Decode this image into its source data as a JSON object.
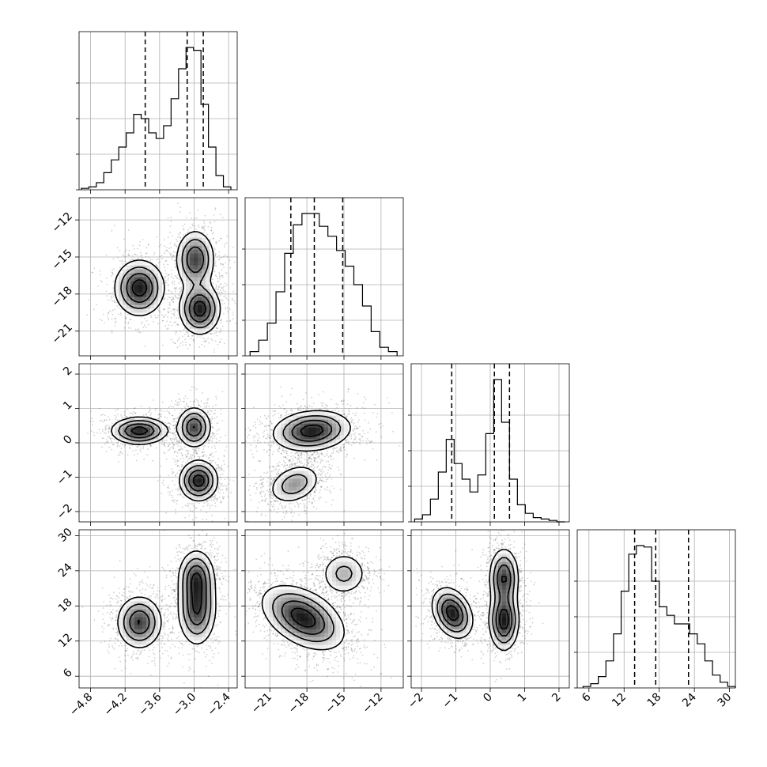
{
  "chart_data": {
    "type": "corner",
    "params": [
      {
        "range": [
          -5.0,
          -2.25
        ],
        "ticks": [
          "-4.8",
          "-4.2",
          "-3.6",
          "-3.0",
          "-2.4"
        ],
        "tick_values": [
          -4.8,
          -4.2,
          -3.6,
          -3.0,
          -2.4
        ],
        "quantiles": [
          -3.85,
          -3.12,
          -2.84
        ],
        "hist": {
          "edges": [
            -4.96,
            -4.83,
            -4.7,
            -4.57,
            -4.44,
            -4.31,
            -4.18,
            -4.05,
            -3.92,
            -3.79,
            -3.66,
            -3.53,
            -3.4,
            -3.27,
            -3.14,
            -3.01,
            -2.88,
            -2.75,
            -2.62,
            -2.49,
            -2.36
          ],
          "counts": [
            0.01,
            0.02,
            0.05,
            0.12,
            0.21,
            0.3,
            0.4,
            0.53,
            0.5,
            0.4,
            0.36,
            0.45,
            0.64,
            0.85,
            1.0,
            0.98,
            0.6,
            0.3,
            0.1,
            0.02
          ]
        }
      },
      {
        "range": [
          -23.0,
          -10.2
        ],
        "ticks": [
          "-21",
          "-18",
          "-15",
          "-12"
        ],
        "tick_values": [
          -21,
          -18,
          -15,
          -12
        ],
        "quantiles": [
          -19.3,
          -17.4,
          -15.1
        ],
        "hist": {
          "edges": [
            -22.6,
            -21.9,
            -21.2,
            -20.5,
            -19.8,
            -19.1,
            -18.4,
            -17.7,
            -17.0,
            -16.3,
            -15.6,
            -14.9,
            -14.2,
            -13.5,
            -12.8,
            -12.1,
            -11.4,
            -10.7
          ],
          "counts": [
            0.03,
            0.11,
            0.23,
            0.45,
            0.72,
            0.92,
            1.0,
            1.0,
            0.91,
            0.84,
            0.74,
            0.63,
            0.5,
            0.35,
            0.17,
            0.06,
            0.03
          ]
        }
      },
      {
        "range": [
          -2.3,
          2.3
        ],
        "ticks": [
          "-2",
          "-1",
          "0",
          "1",
          "2"
        ],
        "tick_values": [
          -2,
          -1,
          0,
          1,
          2
        ],
        "quantiles": [
          -1.12,
          0.12,
          0.56
        ],
        "hist": {
          "edges": [
            -2.2,
            -1.97,
            -1.74,
            -1.51,
            -1.28,
            -1.05,
            -0.82,
            -0.59,
            -0.36,
            -0.13,
            0.1,
            0.33,
            0.56,
            0.79,
            1.02,
            1.25,
            1.48,
            1.71,
            1.94,
            2.17
          ],
          "counts": [
            0.02,
            0.05,
            0.16,
            0.35,
            0.58,
            0.41,
            0.3,
            0.21,
            0.33,
            0.62,
            1.0,
            0.7,
            0.3,
            0.12,
            0.06,
            0.03,
            0.02,
            0.01,
            0.0
          ]
        }
      },
      {
        "range": [
          4.0,
          31.0
        ],
        "ticks": [
          "6",
          "12",
          "18",
          "24",
          "30"
        ],
        "tick_values": [
          6,
          12,
          18,
          24,
          30
        ],
        "quantiles": [
          13.8,
          17.4,
          23.0
        ],
        "hist": {
          "edges": [
            5.0,
            6.3,
            7.6,
            8.9,
            10.2,
            11.5,
            12.8,
            14.1,
            15.4,
            16.7,
            18.0,
            19.3,
            20.6,
            21.9,
            23.2,
            24.5,
            25.8,
            27.1,
            28.4,
            29.7,
            31.0
          ],
          "counts": [
            0.01,
            0.03,
            0.08,
            0.19,
            0.38,
            0.68,
            0.94,
            1.0,
            0.99,
            0.75,
            0.57,
            0.51,
            0.45,
            0.45,
            0.38,
            0.31,
            0.19,
            0.09,
            0.04,
            0.01
          ]
        }
      }
    ],
    "pairs": [
      {
        "x": 0,
        "y": 1,
        "modes": [
          {
            "cx": -3.95,
            "cy": -17.5,
            "sx": 0.22,
            "sy": 1.15,
            "rho": 0.0,
            "w": 0.35
          },
          {
            "cx": -2.98,
            "cy": -15.2,
            "sx": 0.17,
            "sy": 1.2,
            "rho": 0.0,
            "w": 0.3
          },
          {
            "cx": -2.9,
            "cy": -19.2,
            "sx": 0.18,
            "sy": 1.05,
            "rho": 0.0,
            "w": 0.35
          }
        ]
      },
      {
        "x": 0,
        "y": 2,
        "modes": [
          {
            "cx": -3.95,
            "cy": 0.35,
            "sx": 0.25,
            "sy": 0.2,
            "rho": 0.0,
            "w": 0.35
          },
          {
            "cx": -3.0,
            "cy": 0.45,
            "sx": 0.15,
            "sy": 0.3,
            "rho": 0.0,
            "w": 0.3
          },
          {
            "cx": -2.92,
            "cy": -1.1,
            "sx": 0.17,
            "sy": 0.3,
            "rho": 0.0,
            "w": 0.35
          }
        ]
      },
      {
        "x": 1,
        "y": 2,
        "modes": [
          {
            "cx": -17.6,
            "cy": 0.35,
            "sx": 1.6,
            "sy": 0.3,
            "rho": 0.15,
            "w": 0.65
          },
          {
            "cx": -19.0,
            "cy": -1.2,
            "sx": 1.1,
            "sy": 0.3,
            "rho": 0.3,
            "w": 0.35
          }
        ]
      },
      {
        "x": 0,
        "y": 3,
        "modes": [
          {
            "cx": -3.95,
            "cy": 15.2,
            "sx": 0.2,
            "sy": 2.3,
            "rho": 0.0,
            "w": 0.35
          },
          {
            "cx": -2.95,
            "cy": 17.5,
            "sx": 0.17,
            "sy": 3.2,
            "rho": 0.0,
            "w": 0.35
          },
          {
            "cx": -2.96,
            "cy": 23.0,
            "sx": 0.16,
            "sy": 2.4,
            "rho": 0.0,
            "w": 0.3
          }
        ]
      },
      {
        "x": 1,
        "y": 3,
        "modes": [
          {
            "cx": -18.3,
            "cy": 16.0,
            "sx": 1.7,
            "sy": 2.8,
            "rho": -0.45,
            "w": 0.7
          },
          {
            "cx": -15.0,
            "cy": 23.5,
            "sx": 1.0,
            "sy": 2.0,
            "rho": 0.0,
            "w": 0.3
          }
        ]
      },
      {
        "x": 2,
        "y": 3,
        "modes": [
          {
            "cx": -1.1,
            "cy": 16.8,
            "sx": 0.3,
            "sy": 2.2,
            "rho": -0.3,
            "w": 0.35
          },
          {
            "cx": 0.4,
            "cy": 15.5,
            "sx": 0.22,
            "sy": 2.6,
            "rho": 0.0,
            "w": 0.35
          },
          {
            "cx": 0.4,
            "cy": 22.8,
            "sx": 0.22,
            "sy": 2.6,
            "rho": 0.0,
            "w": 0.3
          }
        ]
      }
    ],
    "grid": true,
    "levels": [
      0.15,
      0.35,
      0.6,
      0.85
    ]
  }
}
